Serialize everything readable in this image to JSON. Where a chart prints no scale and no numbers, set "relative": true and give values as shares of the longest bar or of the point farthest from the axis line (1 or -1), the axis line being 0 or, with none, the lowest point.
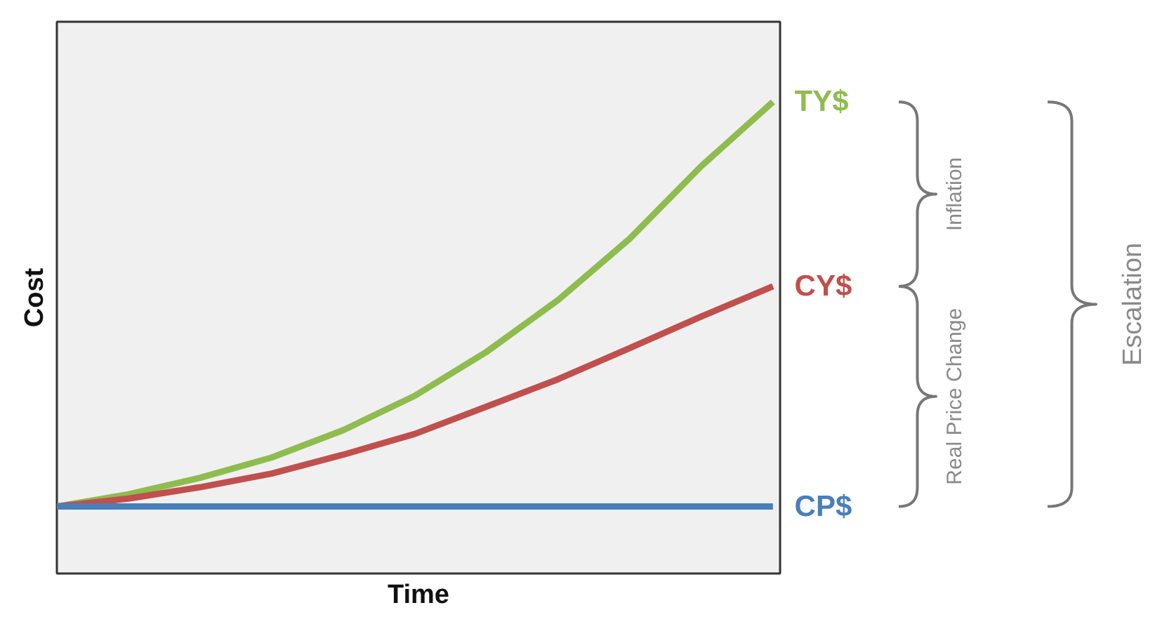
{
  "chart_data": {
    "type": "line",
    "relative": true,
    "xlabel": "Time",
    "ylabel": "Cost",
    "categories": [
      null,
      null,
      null,
      null,
      null,
      null,
      null,
      null,
      null,
      null,
      null
    ],
    "series": [
      {
        "name": "TY$",
        "color": "#8fbc4f",
        "values": [
          0.142,
          0.168,
          0.203,
          0.246,
          0.304,
          0.377,
          0.47,
          0.58,
          0.71,
          0.864,
          1
        ]
      },
      {
        "name": "CY$",
        "color": "#c0504d",
        "values": [
          0.142,
          0.159,
          0.183,
          0.212,
          0.252,
          0.296,
          0.354,
          0.412,
          0.478,
          0.545,
          0.609
        ]
      },
      {
        "name": "CP$",
        "color": "#4a7ebb",
        "values": [
          0.142,
          0.142,
          0.142,
          0.142,
          0.142,
          0.142,
          0.142,
          0.142,
          0.142,
          0.142,
          0.142
        ]
      }
    ],
    "annotations": [
      "Inflation",
      "Real Price Change",
      "Escalation"
    ],
    "marker": "none",
    "line_style": "solid"
  }
}
